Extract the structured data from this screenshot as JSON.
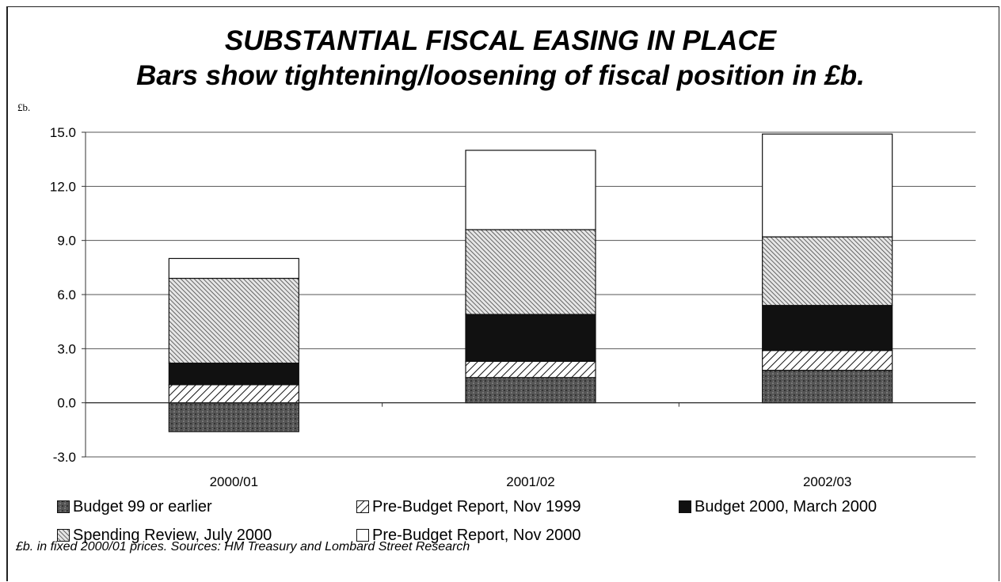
{
  "chart_data": {
    "type": "bar",
    "stacked": true,
    "title": "SUBSTANTIAL FISCAL EASING IN PLACE",
    "subtitle": "Bars show tightening/loosening of fiscal position in £b.",
    "ylabel": "£b.",
    "xlabel": "",
    "categories": [
      "2000/01",
      "2001/02",
      "2002/03"
    ],
    "ylim": [
      -3.0,
      15.0
    ],
    "yticks": [
      "15.0",
      "12.0",
      "9.0",
      "6.0",
      "3.0",
      "0.0",
      "-3.0"
    ],
    "ytick_values": [
      15,
      12,
      9,
      6,
      3,
      0,
      -3
    ],
    "grid": true,
    "legend_position": "bottom",
    "series": [
      {
        "name": "Budget 99 or earlier",
        "values": [
          -1.6,
          1.4,
          1.8
        ],
        "pattern": "dark-speckle"
      },
      {
        "name": "Pre-Budget Report, Nov 1999",
        "values": [
          1.0,
          0.9,
          1.1
        ],
        "pattern": "light-hatch"
      },
      {
        "name": "Budget 2000, March 2000",
        "values": [
          1.2,
          2.6,
          2.5
        ],
        "pattern": "black"
      },
      {
        "name": "Spending Review, July 2000",
        "values": [
          4.7,
          4.7,
          3.8
        ],
        "pattern": "dense-hatch"
      },
      {
        "name": "Pre-Budget Report, Nov 2000",
        "values": [
          1.1,
          4.4,
          5.7
        ],
        "pattern": "white"
      }
    ],
    "footnote": "£b. in fixed 2000/01 prices. Sources: HM Treasury and Lombard Street Research"
  }
}
